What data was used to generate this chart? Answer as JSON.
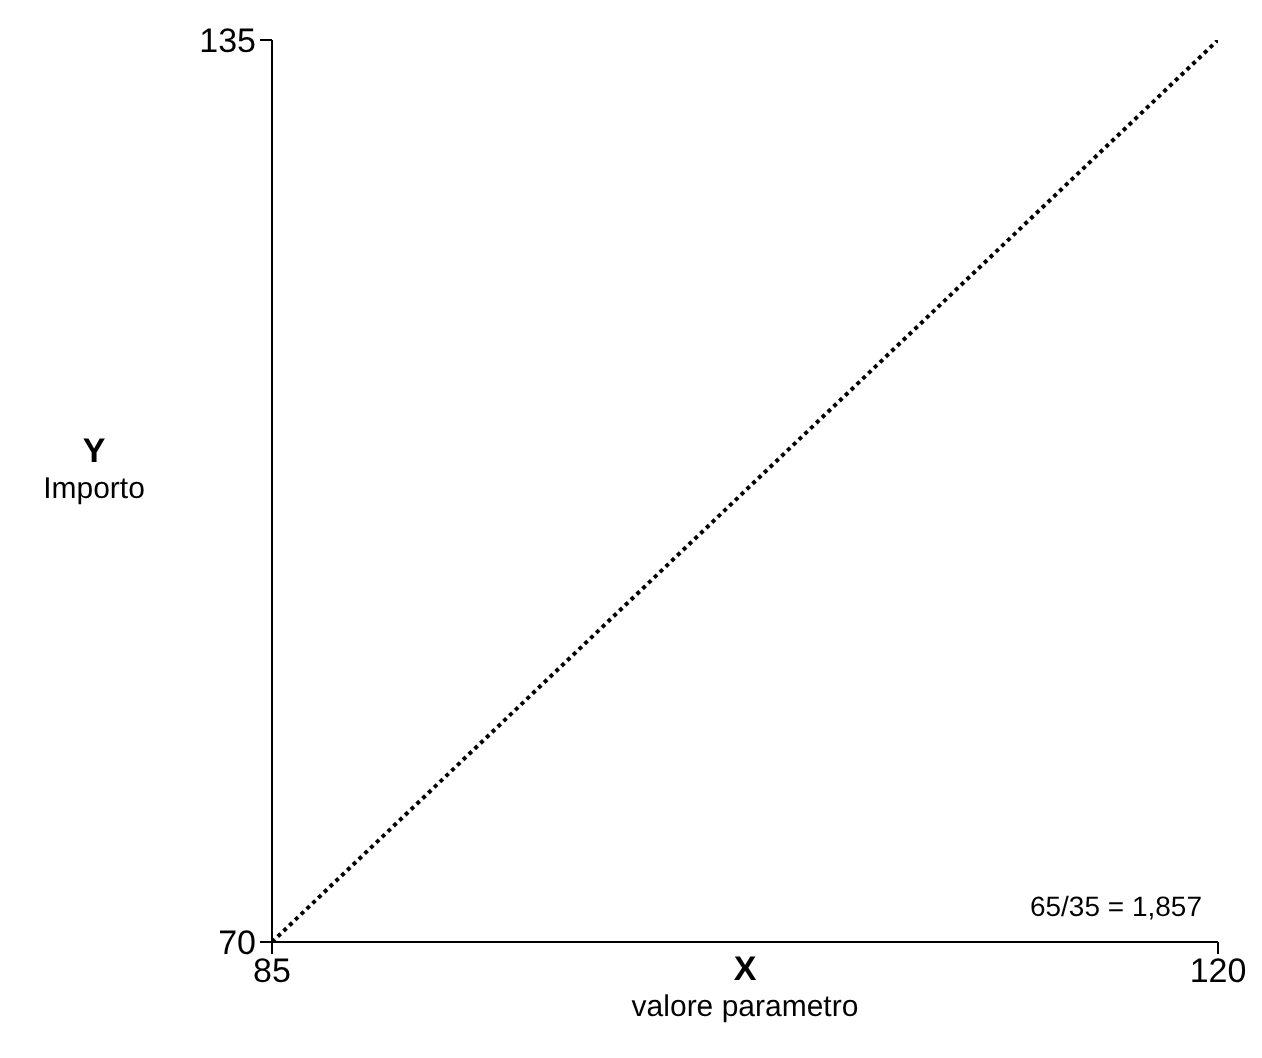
{
  "chart_data": {
    "type": "line",
    "xlabel": "X\nvalore parametro",
    "ylabel": "Y\nImporto",
    "x": [
      85,
      120
    ],
    "series": [
      {
        "color": "#000000",
        "values": [
          70,
          135
        ]
      }
    ],
    "xlim": [
      85,
      120
    ],
    "xticks": [
      85,
      120
    ],
    "ylim": [
      70,
      135
    ],
    "yticks": [
      70,
      135
    ],
    "line_style": "dotted",
    "marker": "none",
    "grid": false,
    "annotations": [
      "65/35 = 1,857"
    ]
  }
}
